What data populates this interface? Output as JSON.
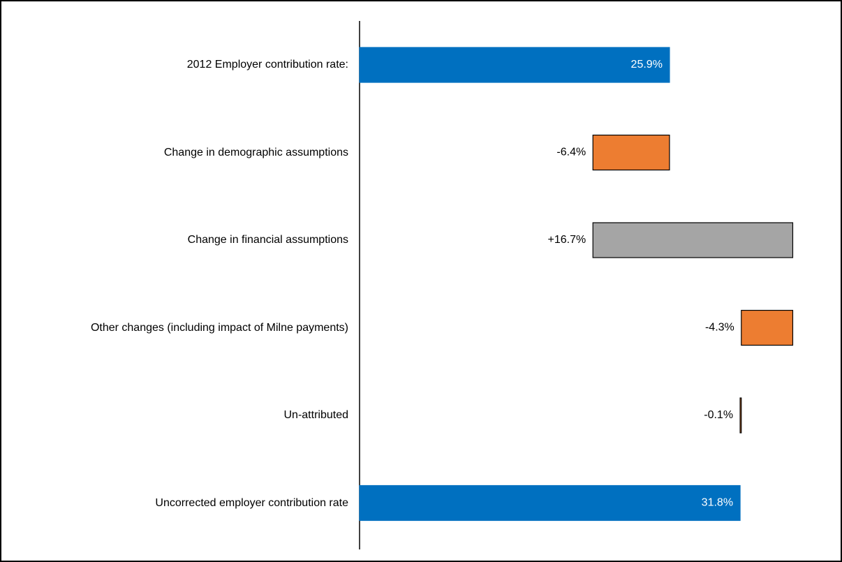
{
  "chart_data": {
    "type": "waterfall",
    "categories": [
      "2012 Employer contribution rate:",
      "Change in demographic assumptions",
      "Change in financial assumptions",
      "Other changes (including impact of Milne payments)",
      "Un-attributed",
      "Uncorrected employer contribution rate"
    ],
    "values": [
      25.9,
      -6.4,
      16.7,
      -4.3,
      -0.1,
      31.8
    ],
    "value_labels": [
      "25.9%",
      "-6.4%",
      "+16.7%",
      "-4.3%",
      "-0.1%",
      "31.8%"
    ],
    "totals": [
      true,
      false,
      false,
      false,
      false,
      true
    ],
    "colors": [
      "#0070c0",
      "#ed7d31",
      "#a5a5a5",
      "#ed7d31",
      "#ed7d31",
      "#0070c0"
    ],
    "xlim": [
      0,
      40
    ]
  }
}
